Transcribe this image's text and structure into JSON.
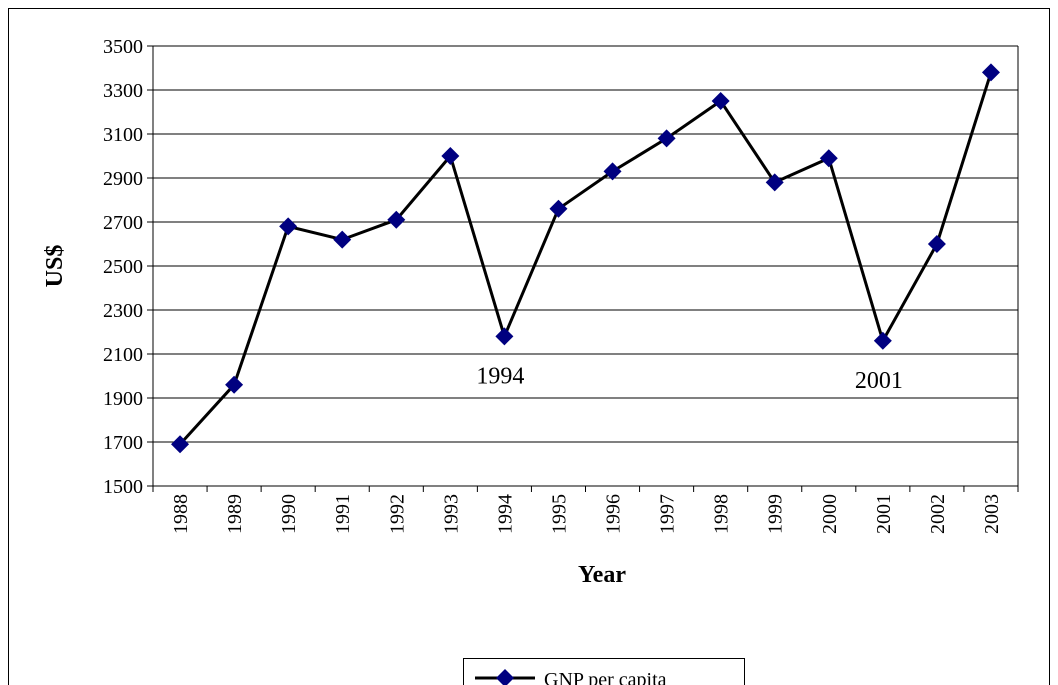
{
  "chart_data": {
    "type": "line",
    "y_label": "US$",
    "x_label": "Year",
    "categories": [
      "1988",
      "1989",
      "1990",
      "1991",
      "1992",
      "1993",
      "1994",
      "1995",
      "1996",
      "1997",
      "1998",
      "1999",
      "2000",
      "2001",
      "2002",
      "2003"
    ],
    "series": [
      {
        "name": "GNP per capita",
        "color": "#000080",
        "values": [
          1690,
          1960,
          2680,
          2620,
          2710,
          3000,
          2180,
          2760,
          2930,
          3080,
          3250,
          2880,
          2990,
          2160,
          2600,
          3380
        ]
      }
    ],
    "annotations": [
      "1994",
      "2001"
    ],
    "ylim": [
      1500,
      3500
    ],
    "yticks": [
      1500,
      1700,
      1900,
      2100,
      2300,
      2500,
      2700,
      2900,
      3100,
      3300,
      3500
    ],
    "grid": true
  }
}
